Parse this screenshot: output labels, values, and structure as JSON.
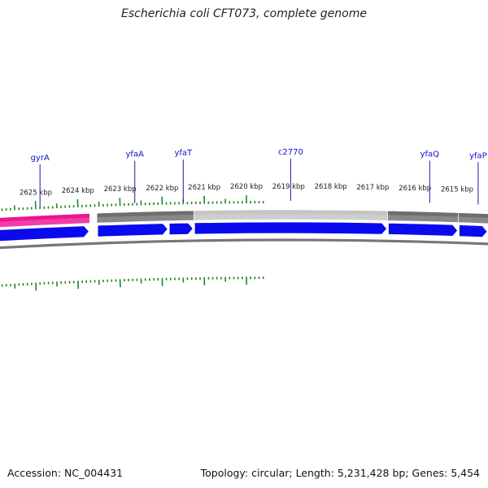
{
  "title": "Escherichia coli CFT073, complete genome",
  "footer": {
    "accession": "Accession: NC_004431",
    "summary": "Topology: circular; Length: 5,231,428 bp; Genes: 5,454"
  },
  "colors": {
    "tick": "#1a8a1a",
    "gene_label": "#1010cc",
    "pointer": "#1818aa",
    "cds_arrow": "#0a0aee",
    "feature_pink": "#ee1493",
    "feature_dark_gray": "#6e6e6e",
    "feature_light_gray": "#c4c4c4",
    "backbone": "#777777"
  },
  "scale": {
    "unit": "kbp",
    "labels": [
      "2625 kbp",
      "2624 kbp",
      "2623 kbp",
      "2622 kbp",
      "2621 kbp",
      "2620 kbp",
      "2619 kbp",
      "2618 kbp",
      "2617 kbp",
      "2616 kbp",
      "2615 kbp"
    ]
  },
  "genes": [
    {
      "name": "gyrA",
      "position_kbp": 2624.9
    },
    {
      "name": "yfaA",
      "position_kbp": 2622.65
    },
    {
      "name": "yfaT",
      "position_kbp": 2621.5
    },
    {
      "name": "c2770",
      "position_kbp": 2618.95
    },
    {
      "name": "yfaQ",
      "position_kbp": 2615.65
    },
    {
      "name": "yfaP",
      "position_kbp": 2614.5
    }
  ],
  "features": [
    {
      "type": "pink",
      "start_kbp": 2625.9,
      "end_kbp": 2623.72
    },
    {
      "type": "dark_gray",
      "start_kbp": 2623.55,
      "end_kbp": 2621.25
    },
    {
      "type": "light_gray",
      "start_kbp": 2621.25,
      "end_kbp": 2616.65
    },
    {
      "type": "dark_gray",
      "start_kbp": 2616.65,
      "end_kbp": 2614.97
    },
    {
      "type": "dark_gray",
      "start_kbp": 2614.97,
      "end_kbp": 2614.1
    }
  ],
  "cds": [
    {
      "start_kbp": 2625.9,
      "end_kbp": 2623.72
    },
    {
      "start_kbp": 2623.55,
      "end_kbp": 2621.85
    },
    {
      "start_kbp": 2621.85,
      "end_kbp": 2621.25
    },
    {
      "start_kbp": 2621.25,
      "end_kbp": 2616.65
    },
    {
      "start_kbp": 2616.65,
      "end_kbp": 2614.97
    },
    {
      "start_kbp": 2614.97,
      "end_kbp": 2614.1
    }
  ]
}
